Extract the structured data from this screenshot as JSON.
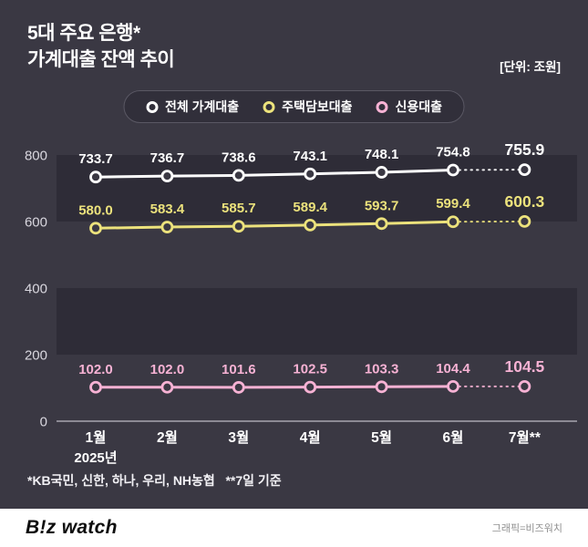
{
  "header": {
    "title_line1": "5대 주요 은행*",
    "title_line2": "가계대출 잔액 추이",
    "unit_label": "[단위: 조원]"
  },
  "legend": [
    {
      "label": "전체 가계대출",
      "color": "#ffffff"
    },
    {
      "label": "주택담보대출",
      "color": "#ece27c"
    },
    {
      "label": "신용대출",
      "color": "#f7b2d4"
    }
  ],
  "chart_data": {
    "type": "line",
    "title": "5대 주요 은행 가계대출 잔액 추이",
    "ylabel": "조원",
    "categories": [
      "1월",
      "2월",
      "3월",
      "4월",
      "5월",
      "6월",
      "7월**"
    ],
    "x_sublabel": "2025년",
    "series": [
      {
        "name": "전체 가계대출",
        "color": "#ffffff",
        "values": [
          733.7,
          736.7,
          738.6,
          743.1,
          748.1,
          754.8,
          755.9
        ]
      },
      {
        "name": "주택담보대출",
        "color": "#ece27c",
        "values": [
          580.0,
          583.4,
          585.7,
          589.4,
          593.7,
          599.4,
          600.3
        ]
      },
      {
        "name": "신용대출",
        "color": "#f7b2d4",
        "values": [
          102.0,
          102.0,
          101.6,
          102.5,
          103.3,
          104.4,
          104.5
        ]
      }
    ],
    "y_ticks": [
      0,
      200,
      400,
      600,
      800
    ],
    "ylim": [
      0,
      800
    ],
    "grid": "banded",
    "legend_position": "top",
    "last_segment_dotted": true
  },
  "footnote": "*KB국민, 신한, 하나, 우리, NH농협   **7일 기준",
  "footer": {
    "logo": "B!z watch",
    "credit": "그래픽=비즈워치"
  },
  "colors": {
    "background": "#3a3843",
    "band": "#2e2c37",
    "axis": "#a7a5af",
    "tick_text": "#d9d7df",
    "label_text": "#ffffff"
  }
}
